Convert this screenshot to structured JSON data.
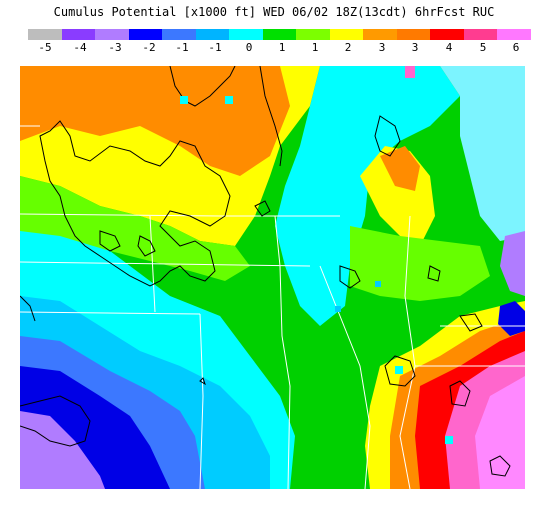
{
  "title": "Cumulus Potential [x1000 ft]  WED 06/02 18Z(13cdt) 6hrFcst RUC",
  "legend": {
    "colors": [
      "#bdbdbd",
      "#8a3cff",
      "#b07cff",
      "#0000ff",
      "#3c78ff",
      "#00b4ff",
      "#00ffff",
      "#00e000",
      "#7cff00",
      "#ffff00",
      "#ff9a00",
      "#ff7a00",
      "#ff0000",
      "#ff3c90",
      "#ff78ff"
    ],
    "labels": [
      "-5",
      "-4",
      "-3",
      "-2",
      "-1",
      "-1",
      "0",
      "1",
      "1",
      "2",
      "3",
      "3",
      "4",
      "5",
      "6"
    ]
  },
  "map": {
    "colors": {
      "deep_blue": "#0000e6",
      "blue": "#3c78ff",
      "sky": "#00ccff",
      "cyan": "#00ffff",
      "light_cyan": "#7cf4ff",
      "green": "#00d000",
      "lime": "#66ff00",
      "yellow": "#ffff00",
      "orange": "#ff8c00",
      "red": "#ff0000",
      "pink": "#ff66cc",
      "magenta": "#ff88ff",
      "purple": "#b07cff"
    }
  }
}
